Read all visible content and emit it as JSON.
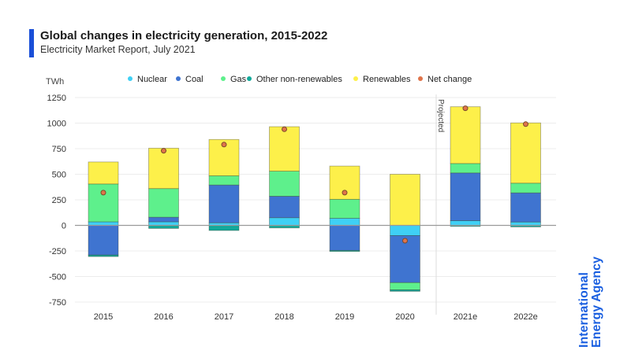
{
  "header": {
    "title": "Global changes in electricity generation, 2015-2022",
    "subtitle": "Electricity Market Report, July 2021"
  },
  "logo": {
    "line1": "International",
    "line2": "Energy Agency"
  },
  "chart_data": {
    "type": "bar",
    "stacked": true,
    "unit_label": "TWh",
    "categories": [
      "2015",
      "2016",
      "2017",
      "2018",
      "2019",
      "2020",
      "2021e",
      "2022e"
    ],
    "ylim": [
      -750,
      1250
    ],
    "yticks": [
      1250,
      1000,
      750,
      500,
      250,
      0,
      -250,
      -500,
      -750
    ],
    "grid": true,
    "legend": "top",
    "annotation": "Projected",
    "series": [
      {
        "name": "Nuclear",
        "color": "#3fd0f5",
        "values": [
          35,
          35,
          25,
          75,
          70,
          -100,
          46,
          33
        ]
      },
      {
        "name": "Coal",
        "color": "#3f74d0",
        "values": [
          -290,
          45,
          370,
          210,
          -245,
          -460,
          467,
          285
        ]
      },
      {
        "name": "Gas",
        "color": "#5ef08c",
        "values": [
          370,
          280,
          90,
          245,
          185,
          -70,
          92,
          95
        ]
      },
      {
        "name": "Other non-renewables",
        "color": "#12a99a",
        "values": [
          -15,
          -30,
          -50,
          -25,
          -10,
          -15,
          -10,
          -15
        ]
      },
      {
        "name": "Renewables",
        "color": "#fdf04a",
        "values": [
          215,
          395,
          355,
          435,
          325,
          500,
          555,
          589
        ]
      }
    ],
    "net_change": {
      "name": "Net change",
      "color": "#e0744a",
      "values": [
        320,
        730,
        790,
        940,
        320,
        -150,
        1145,
        990
      ]
    }
  }
}
